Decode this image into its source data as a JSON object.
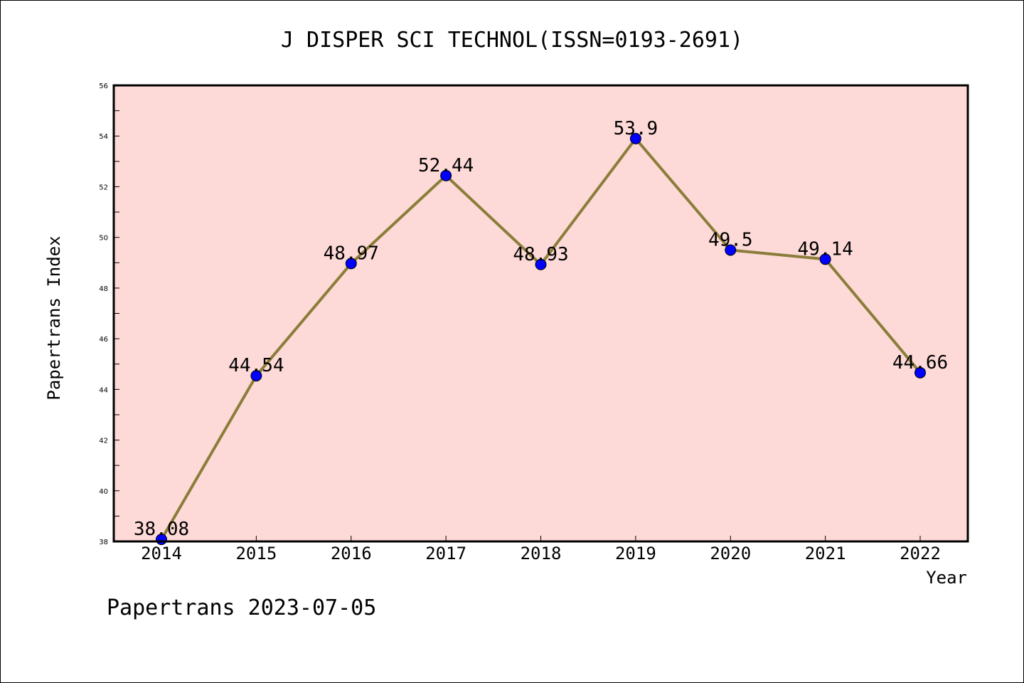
{
  "chart_data": {
    "type": "line",
    "title": "J DISPER SCI TECHNOL(ISSN=0193-2691)",
    "xlabel": "Year",
    "ylabel": "Papertrans Index",
    "ylim": [
      38,
      56
    ],
    "yticks": [
      "38",
      "40",
      "42",
      "44",
      "46",
      "48",
      "50",
      "52",
      "54",
      "56"
    ],
    "categories": [
      "2014",
      "2015",
      "2016",
      "2017",
      "2018",
      "2019",
      "2020",
      "2021",
      "2022"
    ],
    "series": [
      {
        "values": [
          38.08,
          44.54,
          48.97,
          52.44,
          48.93,
          53.9,
          49.5,
          49.14,
          44.66
        ],
        "labels": [
          "38.08",
          "44.54",
          "48.97",
          "52.44",
          "48.93",
          "53.9",
          "49.5",
          "49.14",
          "44.66"
        ]
      }
    ],
    "grid": false,
    "colors": {
      "plot_background": "#fddad7",
      "line": "#8b7d3a",
      "marker": "#0000ff"
    }
  },
  "footer": "Papertrans 2023-07-05"
}
